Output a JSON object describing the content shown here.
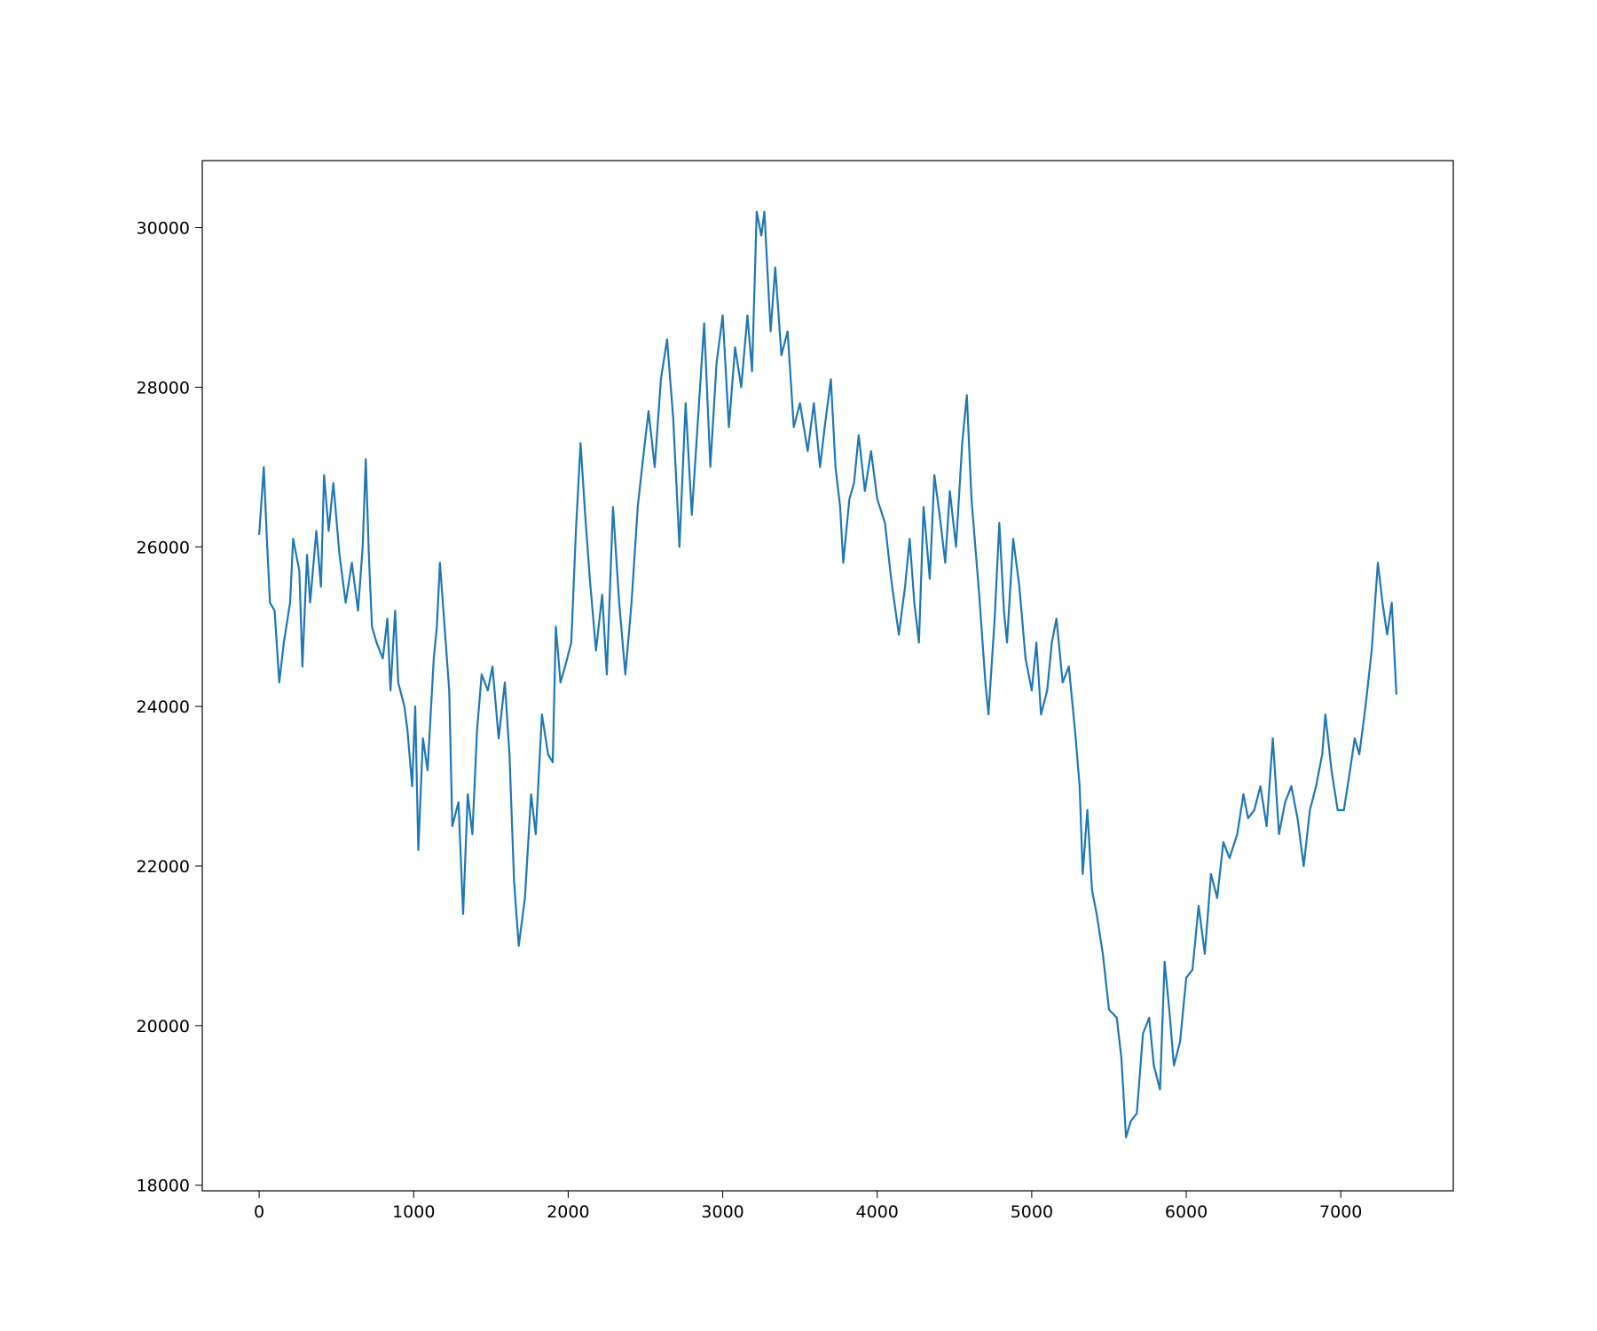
{
  "chart_data": {
    "type": "line",
    "x": [
      0,
      30,
      50,
      70,
      100,
      130,
      160,
      200,
      220,
      260,
      280,
      310,
      330,
      370,
      400,
      420,
      450,
      480,
      520,
      560,
      600,
      640,
      670,
      690,
      710,
      730,
      760,
      800,
      830,
      850,
      880,
      900,
      940,
      960,
      990,
      1010,
      1030,
      1060,
      1090,
      1130,
      1150,
      1170,
      1200,
      1230,
      1250,
      1290,
      1320,
      1350,
      1380,
      1410,
      1440,
      1480,
      1510,
      1550,
      1590,
      1620,
      1650,
      1680,
      1720,
      1760,
      1790,
      1830,
      1870,
      1900,
      1920,
      1950,
      1980,
      2020,
      2050,
      2080,
      2110,
      2140,
      2180,
      2220,
      2250,
      2290,
      2330,
      2370,
      2410,
      2450,
      2490,
      2520,
      2560,
      2600,
      2640,
      2680,
      2720,
      2760,
      2800,
      2850,
      2880,
      2920,
      2960,
      3000,
      3040,
      3080,
      3120,
      3160,
      3190,
      3220,
      3250,
      3270,
      3310,
      3340,
      3380,
      3420,
      3460,
      3500,
      3550,
      3590,
      3630,
      3660,
      3700,
      3730,
      3760,
      3780,
      3820,
      3850,
      3880,
      3920,
      3960,
      4000,
      4050,
      4090,
      4140,
      4180,
      4210,
      4240,
      4270,
      4300,
      4340,
      4370,
      4410,
      4440,
      4470,
      4510,
      4550,
      4580,
      4610,
      4660,
      4700,
      4720,
      4760,
      4790,
      4820,
      4840,
      4880,
      4920,
      4960,
      5000,
      5030,
      5060,
      5100,
      5130,
      5160,
      5200,
      5240,
      5280,
      5310,
      5330,
      5360,
      5390,
      5420,
      5460,
      5500,
      5550,
      5580,
      5610,
      5640,
      5680,
      5720,
      5760,
      5790,
      5830,
      5860,
      5890,
      5920,
      5960,
      6000,
      6040,
      6080,
      6120,
      6160,
      6200,
      6240,
      6280,
      6330,
      6370,
      6400,
      6440,
      6480,
      6520,
      6560,
      6600,
      6640,
      6680,
      6720,
      6760,
      6800,
      6840,
      6880,
      6900,
      6940,
      6980,
      7020,
      7060,
      7090,
      7120,
      7160,
      7200,
      7240,
      7270,
      7300,
      7330,
      7360
    ],
    "series": [
      {
        "color": "#1f77b4",
        "values": [
          26150,
          27000,
          26100,
          25300,
          25200,
          24300,
          24800,
          25300,
          26100,
          25700,
          24500,
          25900,
          25300,
          26200,
          25500,
          26900,
          26200,
          26800,
          25900,
          25300,
          25800,
          25200,
          26000,
          27100,
          25900,
          25000,
          24800,
          24600,
          25100,
          24200,
          25200,
          24300,
          24000,
          23700,
          23000,
          24000,
          22200,
          23600,
          23200,
          24600,
          25000,
          25800,
          25000,
          24200,
          22500,
          22800,
          21400,
          22900,
          22400,
          23700,
          24400,
          24200,
          24500,
          23600,
          24300,
          23400,
          21800,
          21000,
          21600,
          22900,
          22400,
          23900,
          23400,
          23300,
          25000,
          24300,
          24500,
          24800,
          26200,
          27300,
          26400,
          25600,
          24700,
          25400,
          24400,
          26500,
          25300,
          24400,
          25300,
          26500,
          27200,
          27700,
          27000,
          28100,
          28600,
          27600,
          26000,
          27800,
          26400,
          27900,
          28800,
          27000,
          28300,
          28900,
          27500,
          28500,
          28000,
          28900,
          28200,
          30200,
          29900,
          30200,
          28700,
          29500,
          28400,
          28700,
          27500,
          27800,
          27200,
          27800,
          27000,
          27500,
          28100,
          27000,
          26500,
          25800,
          26600,
          26800,
          27400,
          26700,
          27200,
          26600,
          26300,
          25600,
          24900,
          25500,
          26100,
          25300,
          24800,
          26500,
          25600,
          26900,
          26300,
          25800,
          26700,
          26000,
          27300,
          27900,
          26600,
          25400,
          24300,
          23900,
          25100,
          26300,
          25200,
          24800,
          26100,
          25500,
          24600,
          24200,
          24800,
          23900,
          24200,
          24800,
          25100,
          24300,
          24500,
          23700,
          23000,
          21900,
          22700,
          21700,
          21400,
          20900,
          20200,
          20100,
          19600,
          18600,
          18800,
          18900,
          19900,
          20100,
          19500,
          19200,
          20800,
          20200,
          19500,
          19800,
          20600,
          20700,
          21500,
          20900,
          21900,
          21600,
          22300,
          22100,
          22400,
          22900,
          22600,
          22700,
          23000,
          22500,
          23600,
          22400,
          22800,
          23000,
          22600,
          22000,
          22700,
          23000,
          23400,
          23900,
          23200,
          22700,
          22700,
          23200,
          23600,
          23400,
          24000,
          24700,
          25800,
          25300,
          24900,
          25300,
          24150
        ]
      }
    ],
    "xlim": [
      -368,
      7728
    ],
    "ylim": [
      17930,
      30840
    ],
    "xticks": [
      0,
      1000,
      2000,
      3000,
      4000,
      5000,
      6000,
      7000
    ],
    "yticks": [
      18000,
      20000,
      22000,
      24000,
      26000,
      28000,
      30000
    ]
  }
}
